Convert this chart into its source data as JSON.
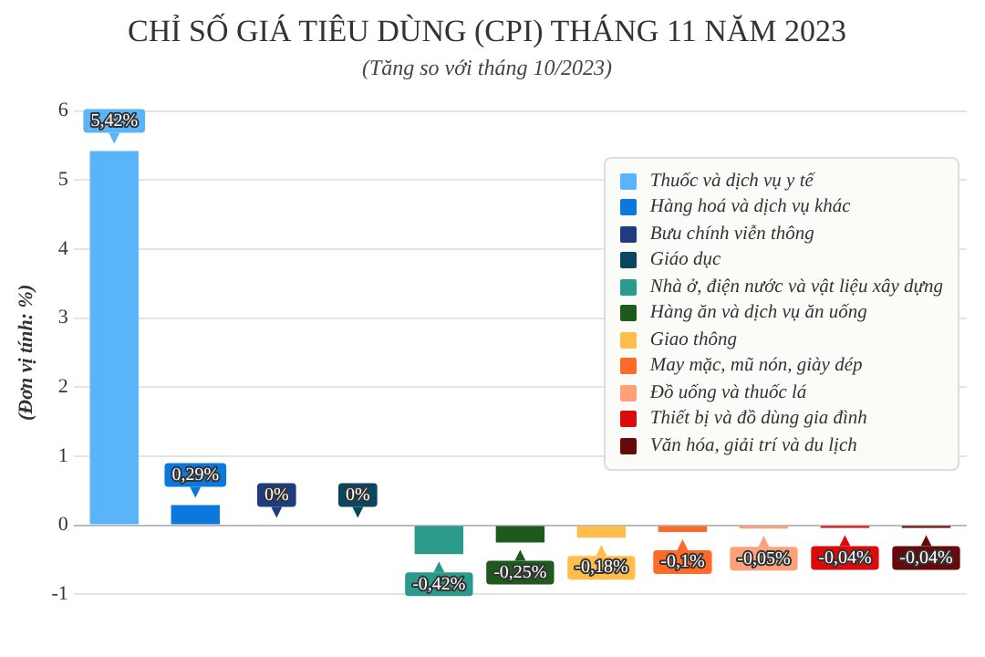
{
  "chart_data": {
    "type": "bar",
    "title": "CHỈ SỐ GIÁ TIÊU DÙNG (CPI) THÁNG 11 NĂM 2023",
    "subtitle": "(Tăng so với tháng 10/2023)",
    "ylabel": "(Đơn vị tính: %)",
    "categories": [
      null,
      null,
      null,
      null,
      null,
      null,
      null,
      null,
      null,
      null,
      null
    ],
    "series": [
      {
        "name": "Thuốc và dịch vụ y tế",
        "color": "#5ab4fa",
        "values": [
          5.42,
          null,
          null,
          null,
          null,
          null,
          null,
          null,
          null,
          null,
          null
        ],
        "value_labels": [
          "5,42%",
          null,
          null,
          null,
          null,
          null,
          null,
          null,
          null,
          null,
          null
        ]
      },
      {
        "name": "Hàng hoá và dịch vụ khác",
        "color": "#0a78dc",
        "values": [
          null,
          0.29,
          null,
          null,
          null,
          null,
          null,
          null,
          null,
          null,
          null
        ],
        "value_labels": [
          null,
          "0,29%",
          null,
          null,
          null,
          null,
          null,
          null,
          null,
          null,
          null
        ]
      },
      {
        "name": "Bưu chính viễn thông",
        "color": "#1e3c82",
        "values": [
          null,
          null,
          0,
          null,
          null,
          null,
          null,
          null,
          null,
          null,
          null
        ],
        "value_labels": [
          null,
          null,
          "0%",
          null,
          null,
          null,
          null,
          null,
          null,
          null,
          null
        ]
      },
      {
        "name": "Giáo dục",
        "color": "#0a4660",
        "values": [
          null,
          null,
          null,
          0,
          null,
          null,
          null,
          null,
          null,
          null,
          null
        ],
        "value_labels": [
          null,
          null,
          null,
          "0%",
          null,
          null,
          null,
          null,
          null,
          null,
          null
        ]
      },
      {
        "name": "Nhà ở, điện nước và vật liệu xây dựng",
        "color": "#2a9a8c",
        "values": [
          null,
          null,
          null,
          null,
          -0.42,
          null,
          null,
          null,
          null,
          null,
          null
        ],
        "value_labels": [
          null,
          null,
          null,
          null,
          "-0,42%",
          null,
          null,
          null,
          null,
          null,
          null
        ]
      },
      {
        "name": "Hàng ăn và dịch vụ ăn uống",
        "color": "#1e5a1e",
        "values": [
          null,
          null,
          null,
          null,
          null,
          -0.25,
          null,
          null,
          null,
          null,
          null
        ],
        "value_labels": [
          null,
          null,
          null,
          null,
          null,
          "-0,25%",
          null,
          null,
          null,
          null,
          null
        ]
      },
      {
        "name": "Giao thông",
        "color": "#ffbe4a",
        "values": [
          null,
          null,
          null,
          null,
          null,
          null,
          -0.18,
          null,
          null,
          null,
          null
        ],
        "value_labels": [
          null,
          null,
          null,
          null,
          null,
          null,
          "-0,18%",
          null,
          null,
          null,
          null
        ]
      },
      {
        "name": "May mặc, mũ nón, giày dép",
        "color": "#ff6a28",
        "values": [
          null,
          null,
          null,
          null,
          null,
          null,
          null,
          -0.1,
          null,
          null,
          null
        ],
        "value_labels": [
          null,
          null,
          null,
          null,
          null,
          null,
          null,
          "-0,1%",
          null,
          null,
          null
        ]
      },
      {
        "name": "Đồ uống và thuốc lá",
        "color": "#ffa078",
        "values": [
          null,
          null,
          null,
          null,
          null,
          null,
          null,
          null,
          -0.05,
          null,
          null
        ],
        "value_labels": [
          null,
          null,
          null,
          null,
          null,
          null,
          null,
          null,
          "-0,05%",
          null,
          null
        ]
      },
      {
        "name": "Thiết bị và đồ dùng gia đình",
        "color": "#dc0a0a",
        "values": [
          null,
          null,
          null,
          null,
          null,
          null,
          null,
          null,
          null,
          -0.04,
          null
        ],
        "value_labels": [
          null,
          null,
          null,
          null,
          null,
          null,
          null,
          null,
          null,
          "-0,04%",
          null
        ]
      },
      {
        "name": "Văn hóa, giải trí và du lịch",
        "color": "#640a0a",
        "values": [
          null,
          null,
          null,
          null,
          null,
          null,
          null,
          null,
          null,
          null,
          -0.04
        ],
        "value_labels": [
          null,
          null,
          null,
          null,
          null,
          null,
          null,
          null,
          null,
          null,
          "-0,04%"
        ]
      }
    ],
    "ylim": [
      -1,
      6
    ],
    "yticks": [
      -1,
      0,
      1,
      2,
      3,
      4,
      5,
      6
    ],
    "grid": "y",
    "legend": "top right"
  }
}
